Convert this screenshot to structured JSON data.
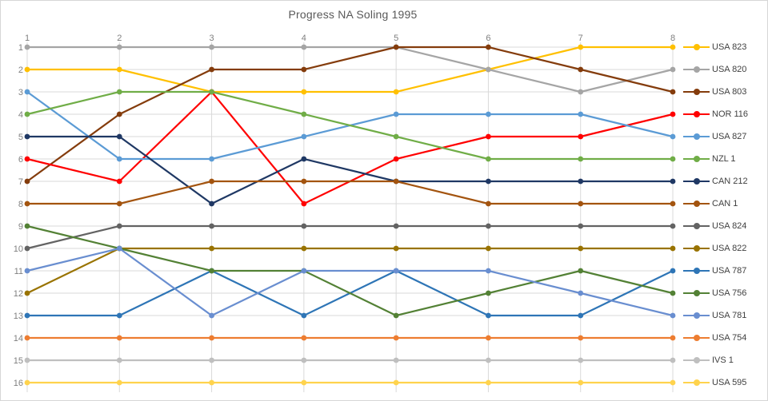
{
  "title": "Progress NA Soling 1995",
  "colors": {
    "background": "#ffffff",
    "frame_border": "#d6d6d6",
    "gridline": "#d9d9d9",
    "tick_label": "#7f7f7f",
    "title_text": "#595959",
    "legend_text": "#404040"
  },
  "chart_data": {
    "type": "line",
    "title": "Progress NA Soling 1995",
    "xlabel": "",
    "ylabel": "",
    "x": [
      1,
      2,
      3,
      4,
      5,
      6,
      7,
      8
    ],
    "x_tick_labels": [
      "1",
      "2",
      "3",
      "4",
      "5",
      "6",
      "7",
      "8"
    ],
    "y_tick_labels": [
      "1",
      "2",
      "3",
      "4",
      "5",
      "6",
      "7",
      "8",
      "9",
      "10",
      "11",
      "12",
      "13",
      "14",
      "15",
      "16"
    ],
    "ylim": [
      1,
      16
    ],
    "y_axis_direction": "rank-down",
    "grid": true,
    "legend_position": "right",
    "marker": "circle",
    "series": [
      {
        "name": "USA 823",
        "color": "#FFC000",
        "values": [
          2,
          2,
          3,
          3,
          3,
          2,
          1,
          1
        ]
      },
      {
        "name": "USA 820",
        "color": "#A5A5A5",
        "values": [
          1,
          1,
          1,
          1,
          1,
          2,
          3,
          2
        ]
      },
      {
        "name": "USA 803",
        "color": "#843C0C",
        "values": [
          7,
          4,
          2,
          2,
          1,
          1,
          2,
          3
        ]
      },
      {
        "name": "NOR 116",
        "color": "#FF0000",
        "values": [
          6,
          7,
          3,
          8,
          6,
          5,
          5,
          4
        ]
      },
      {
        "name": "USA 827",
        "color": "#5B9BD5",
        "values": [
          3,
          6,
          6,
          5,
          4,
          4,
          4,
          5
        ]
      },
      {
        "name": "NZL 1",
        "color": "#70AD47",
        "values": [
          4,
          3,
          3,
          4,
          5,
          6,
          6,
          6
        ]
      },
      {
        "name": "CAN 212",
        "color": "#1F3864",
        "values": [
          5,
          5,
          8,
          6,
          7,
          7,
          7,
          7
        ]
      },
      {
        "name": "CAN 1",
        "color": "#A3540F",
        "values": [
          8,
          8,
          7,
          7,
          7,
          8,
          8,
          8
        ]
      },
      {
        "name": "USA 824",
        "color": "#636363",
        "values": [
          10,
          9,
          9,
          9,
          9,
          9,
          9,
          9
        ]
      },
      {
        "name": "USA 822",
        "color": "#997300",
        "values": [
          12,
          10,
          10,
          10,
          10,
          10,
          10,
          10
        ]
      },
      {
        "name": "USA 787",
        "color": "#2E75B6",
        "values": [
          13,
          13,
          11,
          13,
          11,
          13,
          13,
          11
        ]
      },
      {
        "name": "USA 756",
        "color": "#538135",
        "values": [
          9,
          10,
          11,
          11,
          13,
          12,
          11,
          12
        ]
      },
      {
        "name": "USA 781",
        "color": "#698ED0",
        "values": [
          11,
          10,
          13,
          11,
          11,
          11,
          12,
          13
        ]
      },
      {
        "name": "USA 754",
        "color": "#ED7D31",
        "values": [
          14,
          14,
          14,
          14,
          14,
          14,
          14,
          14
        ]
      },
      {
        "name": "IVS 1",
        "color": "#BFBFBF",
        "values": [
          15,
          15,
          15,
          15,
          15,
          15,
          15,
          15
        ]
      },
      {
        "name": "USA 595",
        "color": "#FFD34D",
        "values": [
          16,
          16,
          16,
          16,
          16,
          16,
          16,
          16
        ]
      }
    ]
  }
}
